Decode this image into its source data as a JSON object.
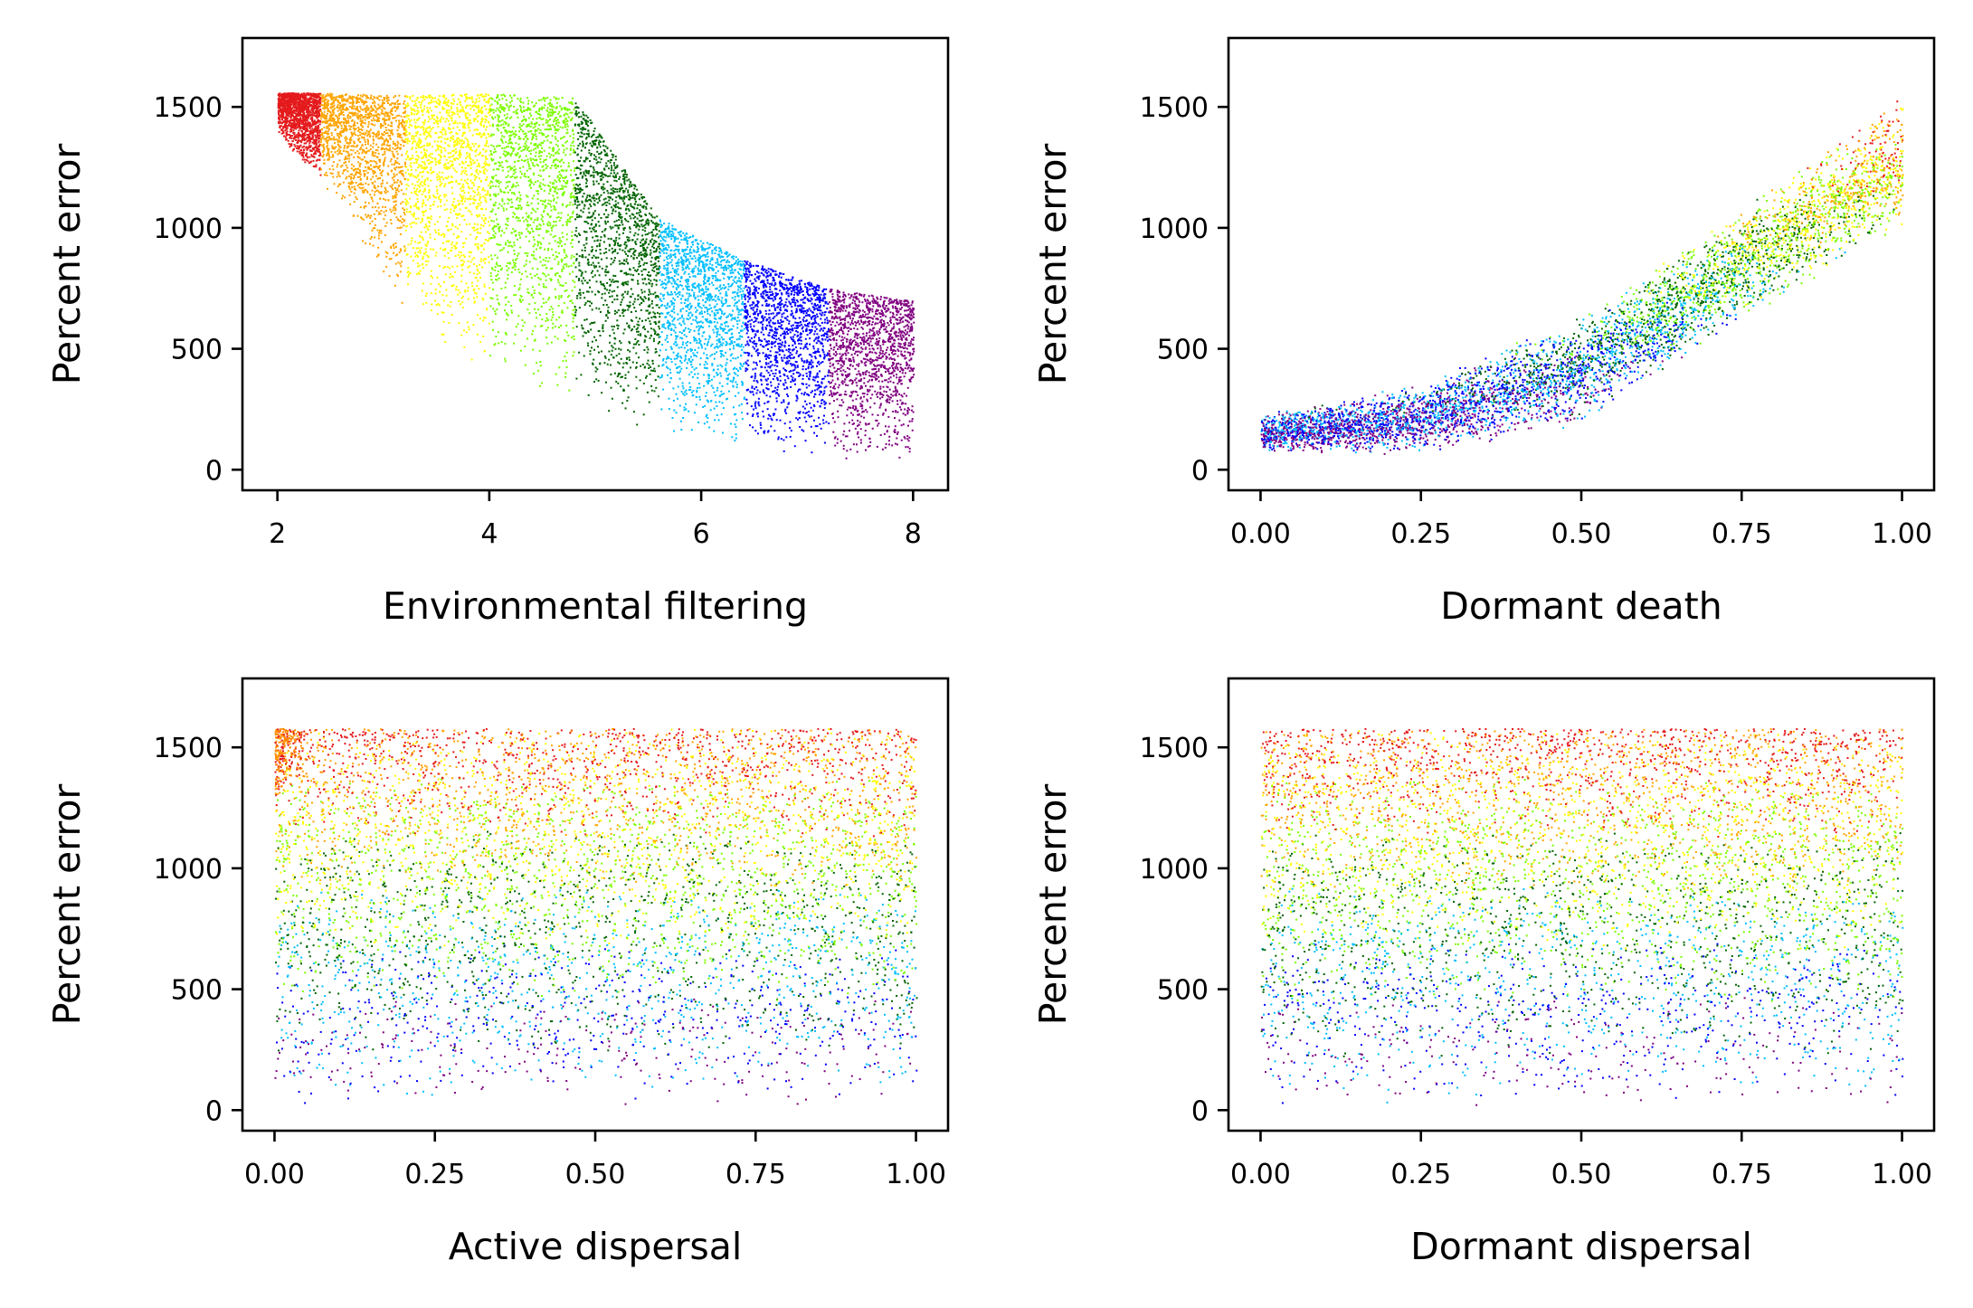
{
  "chart_data": [
    {
      "type": "scatter",
      "xlabel": "Environmental filtering",
      "ylabel": "Percent error",
      "xlim": [
        1.67,
        8.33
      ],
      "ylim": [
        -85,
        1785
      ],
      "xticks": [
        2,
        4,
        6,
        8
      ],
      "xtick_labels": [
        "2",
        "4",
        "6",
        "8"
      ],
      "yticks": [
        0,
        500,
        1000,
        1500
      ],
      "ytick_labels": [
        "0",
        "500",
        "1000",
        "1500"
      ],
      "grid": false,
      "bands": [
        {
          "color": "#e41a1c",
          "x": [
            2.0,
            2.4
          ],
          "y_low": [
            1380,
            1200
          ],
          "y_high": [
            1560,
            1560
          ]
        },
        {
          "color": "#ffa500",
          "x": [
            2.4,
            3.2
          ],
          "y_low": [
            1200,
            650
          ],
          "y_high": [
            1560,
            1550
          ]
        },
        {
          "color": "#ffff00",
          "x": [
            3.2,
            4.0
          ],
          "y_low": [
            650,
            380
          ],
          "y_high": [
            1550,
            1560
          ]
        },
        {
          "color": "#7cfc00",
          "x": [
            4.0,
            4.8
          ],
          "y_low": [
            380,
            250
          ],
          "y_high": [
            1560,
            1540
          ]
        },
        {
          "color": "#006400",
          "x": [
            4.8,
            5.6
          ],
          "y_low": [
            250,
            150
          ],
          "y_high": [
            1540,
            1040
          ]
        },
        {
          "color": "#00bfff",
          "x": [
            5.6,
            6.4
          ],
          "y_low": [
            150,
            90
          ],
          "y_high": [
            1040,
            870
          ]
        },
        {
          "color": "#0000ff",
          "x": [
            6.4,
            7.2
          ],
          "y_low": [
            90,
            50
          ],
          "y_high": [
            870,
            750
          ]
        },
        {
          "color": "#800080",
          "x": [
            7.2,
            8.0
          ],
          "y_low": [
            50,
            20
          ],
          "y_high": [
            750,
            700
          ]
        }
      ]
    },
    {
      "type": "scatter",
      "xlabel": "Dormant death",
      "ylabel": "Percent error",
      "xlim": [
        -0.05,
        1.05
      ],
      "ylim": [
        -85,
        1785
      ],
      "xticks": [
        0,
        0.25,
        0.5,
        0.75,
        1.0
      ],
      "xtick_labels": [
        "0.00",
        "0.25",
        "0.50",
        "0.75",
        "1.00"
      ],
      "yticks": [
        0,
        500,
        1000,
        1500
      ],
      "ytick_labels": [
        "0",
        "500",
        "1000",
        "1500"
      ],
      "grid": false,
      "trend": {
        "x": [
          0,
          0.25,
          0.5,
          0.75,
          1.0
        ],
        "y_low": [
          80,
          60,
          190,
          620,
          1000
        ],
        "y_high": [
          230,
          360,
          650,
          1080,
          1560
        ]
      }
    },
    {
      "type": "scatter",
      "xlabel": "Active dispersal",
      "ylabel": "Percent error",
      "xlim": [
        -0.05,
        1.05
      ],
      "ylim": [
        -85,
        1785
      ],
      "xticks": [
        0,
        0.25,
        0.5,
        0.75,
        1.0
      ],
      "xtick_labels": [
        "0.00",
        "0.25",
        "0.50",
        "0.75",
        "1.00"
      ],
      "yticks": [
        0,
        500,
        1000,
        1500
      ],
      "ytick_labels": [
        "0",
        "500",
        "1000",
        "1500"
      ],
      "grid": false,
      "range": {
        "x": [
          0,
          1.0
        ],
        "y": [
          20,
          1580
        ]
      },
      "cluster": {
        "x": [
          0,
          0.08
        ],
        "y": [
          1300,
          1580
        ],
        "color": "#ff8c00"
      }
    },
    {
      "type": "scatter",
      "xlabel": "Dormant dispersal",
      "ylabel": "Percent error",
      "xlim": [
        -0.05,
        1.05
      ],
      "ylim": [
        -85,
        1785
      ],
      "xticks": [
        0,
        0.25,
        0.5,
        0.75,
        1.0
      ],
      "xtick_labels": [
        "0.00",
        "0.25",
        "0.50",
        "0.75",
        "1.00"
      ],
      "yticks": [
        0,
        500,
        1000,
        1500
      ],
      "ytick_labels": [
        "0",
        "500",
        "1000",
        "1500"
      ],
      "grid": false,
      "range": {
        "x": [
          0,
          1.0
        ],
        "y": [
          20,
          1580
        ]
      }
    }
  ]
}
